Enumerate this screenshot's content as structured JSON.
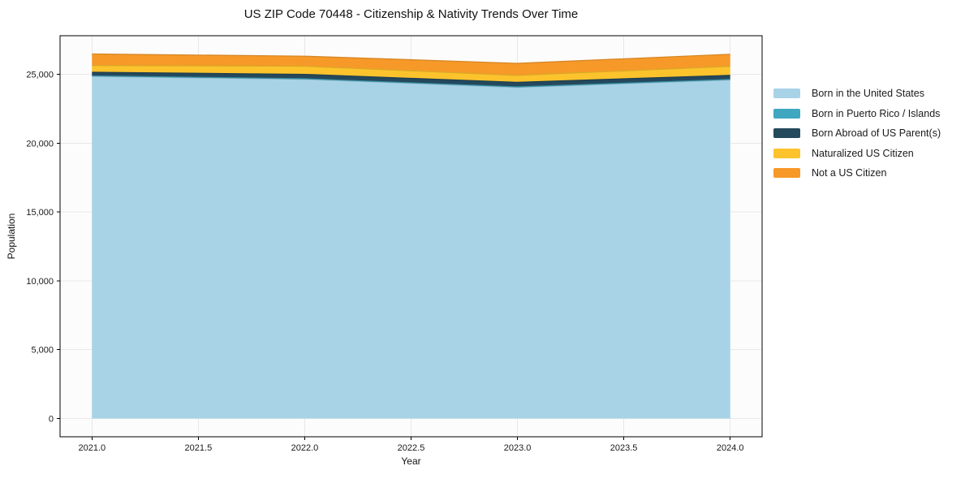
{
  "chart_data": {
    "type": "area",
    "stacked": true,
    "title": "US ZIP Code 70448 - Citizenship & Nativity Trends Over Time",
    "xlabel": "Year",
    "ylabel": "Population",
    "x": [
      2021,
      2022,
      2023,
      2024
    ],
    "series": [
      {
        "name": "Born in the United States",
        "color": "#a8d3e7",
        "values": [
          24850,
          24640,
          24050,
          24590
        ]
      },
      {
        "name": "Born in Puerto Rico / Islands",
        "color": "#3fa7bf",
        "values": [
          40,
          40,
          40,
          40
        ]
      },
      {
        "name": "Born Abroad of US Parent(s)",
        "color": "#24485c",
        "values": [
          260,
          320,
          330,
          300
        ]
      },
      {
        "name": "Naturalized US Citizen",
        "color": "#fcc32d",
        "values": [
          490,
          590,
          500,
          650
        ]
      },
      {
        "name": "Not a US Citizen",
        "color": "#f79928",
        "values": [
          840,
          730,
          880,
          880
        ]
      }
    ],
    "totals": [
      26480,
      26320,
      25800,
      26460
    ],
    "xticks": {
      "values": [
        2021.0,
        2021.5,
        2022.0,
        2022.5,
        2023.0,
        2023.5,
        2024.0
      ],
      "labels": [
        "2021.0",
        "2021.5",
        "2022.0",
        "2022.5",
        "2023.0",
        "2023.5",
        "2024.0"
      ]
    },
    "yticks": {
      "values": [
        0,
        5000,
        10000,
        15000,
        20000,
        25000
      ],
      "labels": [
        "0",
        "5,000",
        "10,000",
        "15,000",
        "20,000",
        "25,000"
      ]
    },
    "xlim": [
      2020.85,
      2024.15
    ],
    "ylim": [
      -1324,
      27804
    ],
    "grid": true,
    "legend_position": "outside-right",
    "colors": {
      "spine": "#000000",
      "gridline": "#e8e8e8",
      "plot_background": "#fcfcfc",
      "figure_background": "#ffffff",
      "text": "#1a1a1a"
    }
  }
}
